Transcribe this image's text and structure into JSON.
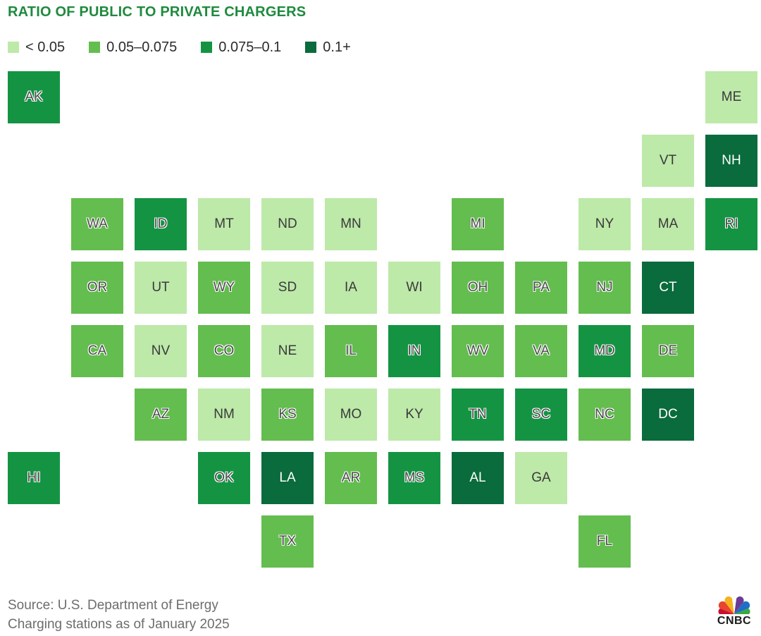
{
  "title": "RATIO OF PUBLIC TO PRIVATE CHARGERS",
  "legend": [
    {
      "label": "< 0.05",
      "color": "#bde9a9"
    },
    {
      "label": "0.05–0.075",
      "color": "#64bd4f"
    },
    {
      "label": "0.075–0.1",
      "color": "#149443"
    },
    {
      "label": "0.1+",
      "color": "#0a6b3c"
    }
  ],
  "states": [
    {
      "code": "AK",
      "bin": 2
    },
    {
      "code": "ME",
      "bin": 0
    },
    {
      "code": "VT",
      "bin": 0
    },
    {
      "code": "NH",
      "bin": 3
    },
    {
      "code": "WA",
      "bin": 1
    },
    {
      "code": "ID",
      "bin": 2
    },
    {
      "code": "MT",
      "bin": 0
    },
    {
      "code": "ND",
      "bin": 0
    },
    {
      "code": "MN",
      "bin": 0
    },
    {
      "code": "MI",
      "bin": 1
    },
    {
      "code": "NY",
      "bin": 0
    },
    {
      "code": "MA",
      "bin": 0
    },
    {
      "code": "RI",
      "bin": 2
    },
    {
      "code": "OR",
      "bin": 1
    },
    {
      "code": "UT",
      "bin": 0
    },
    {
      "code": "WY",
      "bin": 1
    },
    {
      "code": "SD",
      "bin": 0
    },
    {
      "code": "IA",
      "bin": 0
    },
    {
      "code": "WI",
      "bin": 0
    },
    {
      "code": "OH",
      "bin": 1
    },
    {
      "code": "PA",
      "bin": 1
    },
    {
      "code": "NJ",
      "bin": 1
    },
    {
      "code": "CT",
      "bin": 3
    },
    {
      "code": "CA",
      "bin": 1
    },
    {
      "code": "NV",
      "bin": 0
    },
    {
      "code": "CO",
      "bin": 1
    },
    {
      "code": "NE",
      "bin": 0
    },
    {
      "code": "IL",
      "bin": 1
    },
    {
      "code": "IN",
      "bin": 2
    },
    {
      "code": "WV",
      "bin": 1
    },
    {
      "code": "VA",
      "bin": 1
    },
    {
      "code": "MD",
      "bin": 2
    },
    {
      "code": "DE",
      "bin": 1
    },
    {
      "code": "AZ",
      "bin": 1
    },
    {
      "code": "NM",
      "bin": 0
    },
    {
      "code": "KS",
      "bin": 1
    },
    {
      "code": "MO",
      "bin": 0
    },
    {
      "code": "KY",
      "bin": 0
    },
    {
      "code": "TN",
      "bin": 2
    },
    {
      "code": "SC",
      "bin": 2
    },
    {
      "code": "NC",
      "bin": 1
    },
    {
      "code": "DC",
      "bin": 3
    },
    {
      "code": "HI",
      "bin": 2
    },
    {
      "code": "OK",
      "bin": 2
    },
    {
      "code": "LA",
      "bin": 3
    },
    {
      "code": "AR",
      "bin": 1
    },
    {
      "code": "MS",
      "bin": 2
    },
    {
      "code": "AL",
      "bin": 3
    },
    {
      "code": "GA",
      "bin": 0
    },
    {
      "code": "TX",
      "bin": 1
    },
    {
      "code": "FL",
      "bin": 1
    }
  ],
  "footer": {
    "source": "Source: U.S. Department of Energy",
    "note": "Charging stations as of January 2025"
  },
  "logo": {
    "text": "CNBC"
  }
}
